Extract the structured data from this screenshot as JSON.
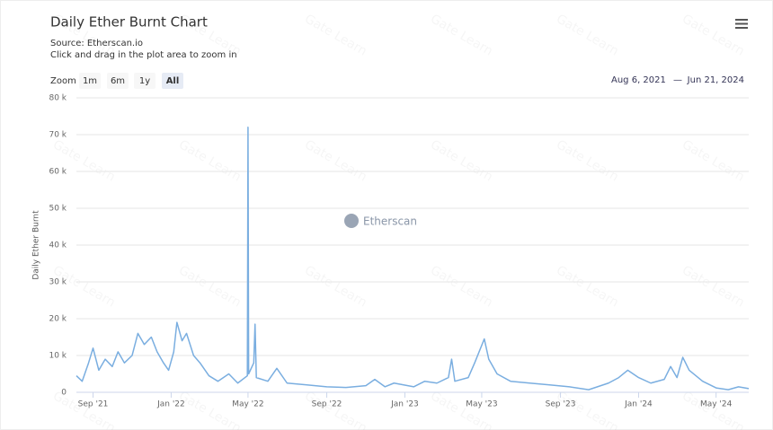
{
  "chart_data": {
    "type": "line",
    "title": "Daily Ether Burnt Chart",
    "subtitle": "Source: Etherscan.io",
    "instruction": "Click and drag in the plot area to zoom in",
    "zoom_label": "Zoom",
    "zoom_buttons": [
      "1m",
      "6m",
      "1y",
      "All"
    ],
    "active_zoom": "All",
    "range_from": "Aug 6, 2021",
    "range_separator": "—",
    "range_to": "Jun 21, 2024",
    "watermark": "Etherscan",
    "overlay_watermark": "Gate Learn",
    "ylabel": "Daily Ether Burnt",
    "grid": true,
    "xlim": [
      "2021-08-06",
      "2024-06-21"
    ],
    "xticks": [
      {
        "value": "2021-09-01",
        "label": "Sep '21"
      },
      {
        "value": "2022-01-01",
        "label": "Jan '22"
      },
      {
        "value": "2022-05-01",
        "label": "May '22"
      },
      {
        "value": "2022-09-01",
        "label": "Sep '22"
      },
      {
        "value": "2023-01-01",
        "label": "Jan '23"
      },
      {
        "value": "2023-05-01",
        "label": "May '23"
      },
      {
        "value": "2023-09-01",
        "label": "Sep '23"
      },
      {
        "value": "2024-01-01",
        "label": "Jan '24"
      },
      {
        "value": "2024-05-01",
        "label": "May '24"
      }
    ],
    "ylim": [
      0,
      80000
    ],
    "yticks": [
      0,
      {
        "value": 10000,
        "label": "10 k"
      },
      {
        "value": 20000,
        "label": "20 k"
      },
      {
        "value": 30000,
        "label": "30 k"
      },
      {
        "value": 40000,
        "label": "40 k"
      },
      {
        "value": 50000,
        "label": "50 k"
      },
      {
        "value": 60000,
        "label": "60 k"
      },
      {
        "value": 70000,
        "label": "70 k"
      },
      {
        "value": 80000,
        "label": "80 k"
      }
    ],
    "series": [
      {
        "name": "Daily Ether Burnt",
        "color": "#7aaee0",
        "x": [
          "2021-08-06",
          "2021-08-15",
          "2021-08-25",
          "2021-09-01",
          "2021-09-10",
          "2021-09-20",
          "2021-10-01",
          "2021-10-10",
          "2021-10-20",
          "2021-11-01",
          "2021-11-10",
          "2021-11-20",
          "2021-12-01",
          "2021-12-10",
          "2021-12-20",
          "2021-12-28",
          "2022-01-05",
          "2022-01-10",
          "2022-01-18",
          "2022-01-25",
          "2022-02-05",
          "2022-02-15",
          "2022-03-01",
          "2022-03-15",
          "2022-04-01",
          "2022-04-15",
          "2022-04-30",
          "2022-05-01",
          "2022-05-02",
          "2022-05-10",
          "2022-05-12",
          "2022-05-14",
          "2022-06-01",
          "2022-06-15",
          "2022-07-01",
          "2022-08-01",
          "2022-09-01",
          "2022-10-01",
          "2022-11-01",
          "2022-11-15",
          "2022-12-01",
          "2022-12-15",
          "2023-01-15",
          "2023-02-01",
          "2023-02-20",
          "2023-03-10",
          "2023-03-15",
          "2023-03-20",
          "2023-04-10",
          "2023-04-20",
          "2023-05-05",
          "2023-05-12",
          "2023-05-25",
          "2023-06-15",
          "2023-07-15",
          "2023-08-15",
          "2023-09-15",
          "2023-10-15",
          "2023-11-15",
          "2023-12-01",
          "2023-12-15",
          "2024-01-01",
          "2024-01-20",
          "2024-02-10",
          "2024-02-20",
          "2024-03-01",
          "2024-03-10",
          "2024-03-20",
          "2024-04-10",
          "2024-05-01",
          "2024-05-20",
          "2024-06-05",
          "2024-06-21"
        ],
        "values": [
          4500,
          3000,
          8000,
          12000,
          6000,
          9000,
          7000,
          11000,
          8000,
          10000,
          16000,
          13000,
          15000,
          11000,
          8000,
          6000,
          11000,
          19000,
          14000,
          16000,
          10000,
          8000,
          4500,
          3000,
          5000,
          2500,
          4500,
          72000,
          5000,
          8000,
          18500,
          4000,
          3000,
          6500,
          2500,
          2000,
          1500,
          1300,
          1800,
          3500,
          1500,
          2500,
          1500,
          3000,
          2500,
          4000,
          9000,
          3000,
          4000,
          8000,
          14500,
          9000,
          5000,
          3000,
          2500,
          2000,
          1500,
          700,
          2500,
          4000,
          6000,
          4000,
          2500,
          3500,
          7000,
          4000,
          9500,
          6000,
          3000,
          1200,
          700,
          1500,
          1000
        ]
      }
    ]
  }
}
